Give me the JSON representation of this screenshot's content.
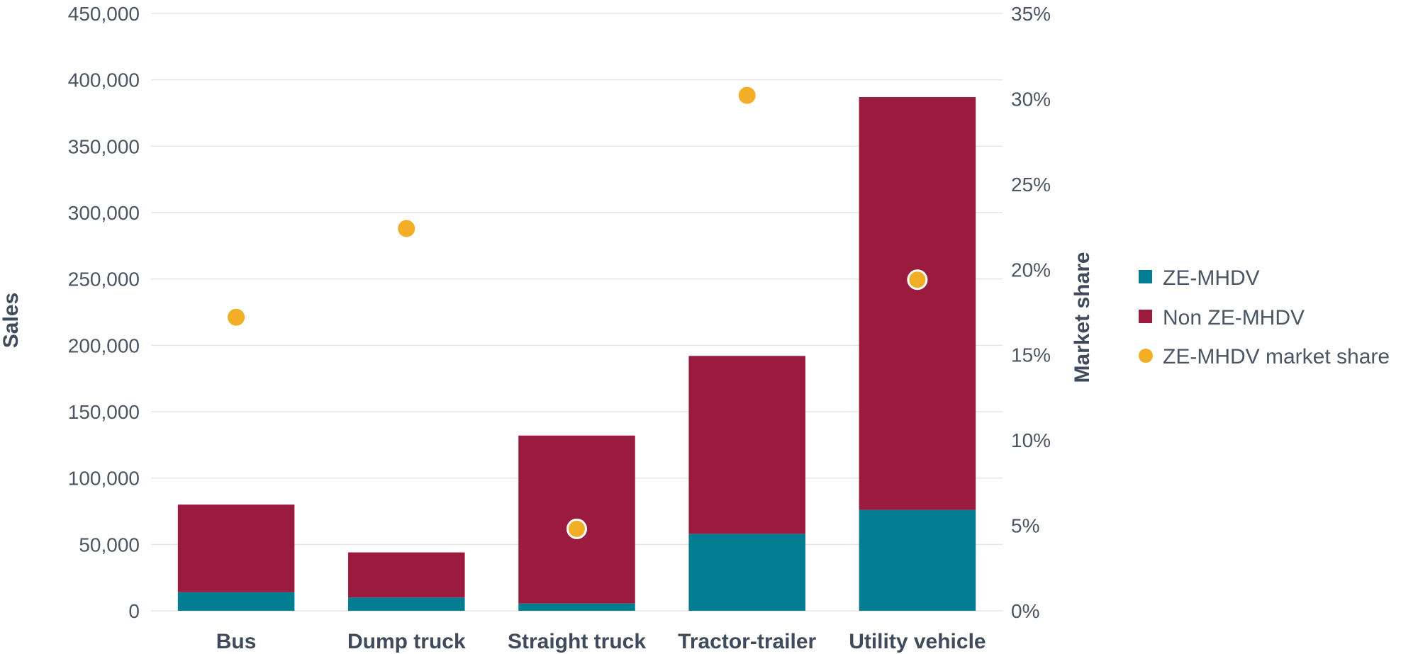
{
  "chart_data": {
    "type": "bar",
    "stacked": true,
    "categories": [
      "Bus",
      "Dump truck",
      "Straight truck",
      "Tractor-trailer",
      "Utility vehicle"
    ],
    "series": [
      {
        "name": "ZE-MHDV",
        "kind": "bar",
        "axis": "left",
        "color": "#007d91",
        "values": [
          14000,
          10000,
          5500,
          58000,
          76000
        ]
      },
      {
        "name": "Non ZE-MHDV",
        "kind": "bar",
        "axis": "left",
        "color": "#9b1b3f",
        "values": [
          66000,
          34000,
          126500,
          134000,
          311000
        ]
      },
      {
        "name": "ZE-MHDV market share",
        "kind": "scatter",
        "axis": "right",
        "color": "#f2ae26",
        "values": [
          17.2,
          22.4,
          4.8,
          30.2,
          19.4
        ]
      }
    ],
    "xlabel": "",
    "ylabel": "Sales",
    "y2label": "Market share",
    "ylim": [
      0,
      450000
    ],
    "y2lim": [
      0,
      35
    ],
    "yticks": [
      "0",
      "50,000",
      "100,000",
      "150,000",
      "200,000",
      "250,000",
      "300,000",
      "350,000",
      "400,000",
      "450,000"
    ],
    "y2ticks": [
      "0%",
      "5%",
      "10%",
      "15%",
      "20%",
      "25%",
      "30%",
      "35%"
    ],
    "legend": [
      "ZE-MHDV",
      "Non ZE-MHDV",
      "ZE-MHDV market share"
    ],
    "legend_position": "right",
    "grid": true
  }
}
